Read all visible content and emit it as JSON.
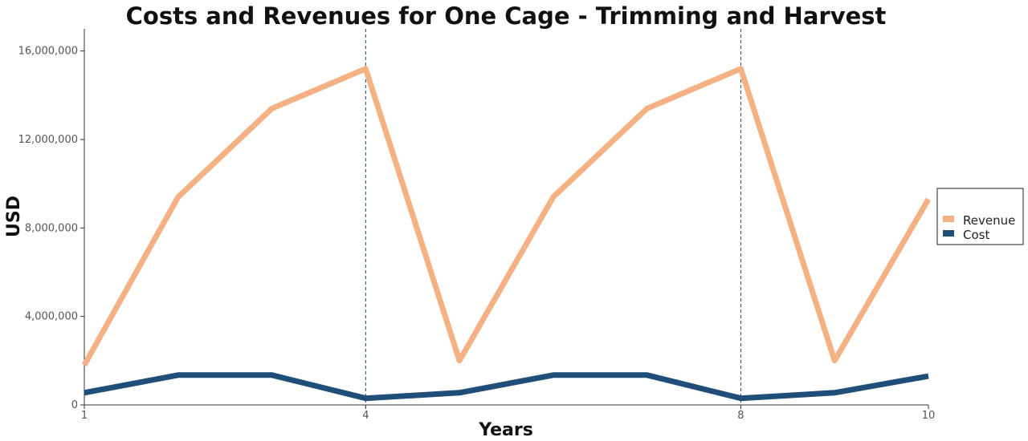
{
  "chart_data": {
    "type": "line",
    "title": "Costs and Revenues for One Cage - Trimming and Harvest",
    "xlabel": "Years",
    "ylabel": "USD",
    "x": [
      1,
      2,
      3,
      4,
      5,
      6,
      7,
      8,
      9,
      10
    ],
    "xlim": [
      1,
      10
    ],
    "ylim": [
      0,
      17000000
    ],
    "x_ticks": [
      1,
      4,
      8,
      10
    ],
    "y_ticks": [
      0,
      4000000,
      8000000,
      12000000,
      16000000
    ],
    "x_tick_labels": [
      "1",
      "4",
      "8",
      "10"
    ],
    "y_tick_labels": [
      "0",
      "4,000,000",
      "8,000,000",
      "12,000,000",
      "16,000,000"
    ],
    "vlines": [
      4,
      8
    ],
    "grid": false,
    "legend_position": "right",
    "series": [
      {
        "name": "Revenue",
        "color": "#f4b183",
        "values": [
          1800000,
          9400000,
          13400000,
          15200000,
          2000000,
          9400000,
          13400000,
          15200000,
          2000000,
          9300000
        ]
      },
      {
        "name": "Cost",
        "color": "#1f4e79",
        "values": [
          550000,
          1350000,
          1350000,
          300000,
          550000,
          1350000,
          1350000,
          300000,
          550000,
          1300000
        ]
      }
    ]
  }
}
